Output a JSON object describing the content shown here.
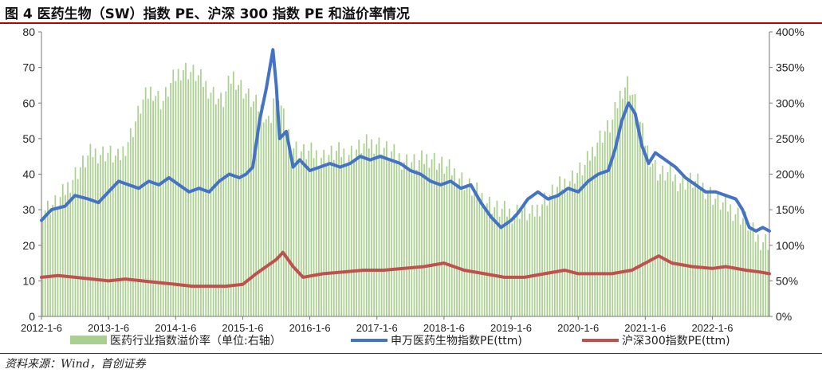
{
  "title": "图 4 医药生物（SW）指数 PE、沪深 300 指数 PE 和溢价率情况",
  "source": "资料来源：Wind，首创证券",
  "chart_data": {
    "type": "bar+line",
    "left_axis": {
      "min": 0,
      "max": 80,
      "ticks": [
        "0",
        "10",
        "20",
        "30",
        "40",
        "50",
        "60",
        "70",
        "80"
      ]
    },
    "right_axis": {
      "min": 0,
      "max": 400,
      "ticks": [
        "0%",
        "50%",
        "100%",
        "150%",
        "200%",
        "250%",
        "300%",
        "350%",
        "400%"
      ]
    },
    "x_ticks": [
      "2012-1-6",
      "2013-1-6",
      "2014-1-6",
      "2015-1-6",
      "2016-1-6",
      "2017-1-6",
      "2018-1-6",
      "2019-1-6",
      "2020-1-6",
      "2021-1-6",
      "2022-1-6"
    ],
    "x_range": [
      2012.0,
      2022.85
    ],
    "grid": false,
    "legend_position": "bottom",
    "colors": {
      "premium": "#a9d08e",
      "pharma": "#4472c4",
      "hs300": "#c0504d"
    },
    "series": [
      {
        "name": "医药行业指数溢价率（单位:右轴）",
        "axis": "right",
        "type": "bar",
        "x": [
          2012.0,
          2012.25,
          2012.5,
          2012.75,
          2013.0,
          2013.15,
          2013.35,
          2013.5,
          2013.65,
          2013.8,
          2013.95,
          2014.1,
          2014.3,
          2014.5,
          2014.7,
          2014.85,
          2015.0,
          2015.15,
          2015.3,
          2015.4,
          2015.5,
          2015.6,
          2015.75,
          2015.9,
          2016.0,
          2016.2,
          2016.4,
          2016.6,
          2016.8,
          2017.0,
          2017.2,
          2017.4,
          2017.6,
          2017.8,
          2018.0,
          2018.2,
          2018.4,
          2018.6,
          2018.8,
          2019.0,
          2019.15,
          2019.3,
          2019.5,
          2019.7,
          2019.9,
          2020.1,
          2020.3,
          2020.5,
          2020.65,
          2020.75,
          2020.85,
          2020.95,
          2021.05,
          2021.2,
          2021.35,
          2021.5,
          2021.7,
          2021.9,
          2022.1,
          2022.3,
          2022.5,
          2022.65,
          2022.85
        ],
        "y": [
          150,
          160,
          200,
          230,
          230,
          220,
          260,
          300,
          320,
          300,
          330,
          350,
          340,
          320,
          300,
          340,
          320,
          300,
          290,
          270,
          330,
          280,
          240,
          230,
          230,
          225,
          230,
          230,
          240,
          245,
          230,
          220,
          215,
          225,
          210,
          200,
          180,
          165,
          150,
          145,
          150,
          140,
          165,
          180,
          195,
          210,
          250,
          270,
          320,
          330,
          300,
          260,
          230,
          200,
          200,
          190,
          190,
          180,
          160,
          150,
          135,
          110,
          105
        ]
      },
      {
        "name": "申万医药生物指数PE(ttm)",
        "axis": "left",
        "type": "line",
        "x": [
          2012.0,
          2012.15,
          2012.35,
          2012.5,
          2012.7,
          2012.85,
          2013.0,
          2013.15,
          2013.3,
          2013.45,
          2013.6,
          2013.75,
          2013.9,
          2014.05,
          2014.2,
          2014.35,
          2014.5,
          2014.65,
          2014.8,
          2014.95,
          2015.05,
          2015.15,
          2015.25,
          2015.35,
          2015.45,
          2015.5,
          2015.55,
          2015.65,
          2015.75,
          2015.85,
          2016.0,
          2016.15,
          2016.3,
          2016.45,
          2016.6,
          2016.75,
          2016.9,
          2017.05,
          2017.2,
          2017.35,
          2017.5,
          2017.65,
          2017.8,
          2017.95,
          2018.1,
          2018.25,
          2018.4,
          2018.55,
          2018.7,
          2018.85,
          2019.0,
          2019.1,
          2019.25,
          2019.4,
          2019.55,
          2019.7,
          2019.85,
          2020.0,
          2020.15,
          2020.3,
          2020.45,
          2020.55,
          2020.65,
          2020.75,
          2020.85,
          2020.95,
          2021.05,
          2021.15,
          2021.3,
          2021.45,
          2021.6,
          2021.75,
          2021.9,
          2022.05,
          2022.2,
          2022.35,
          2022.45,
          2022.55,
          2022.65,
          2022.75,
          2022.85
        ],
        "y": [
          27,
          30,
          31,
          34,
          33,
          32,
          35,
          38,
          37,
          36,
          38,
          37,
          39,
          37,
          35,
          36,
          35,
          38,
          40,
          39,
          40,
          42,
          55,
          64,
          75,
          65,
          50,
          52,
          42,
          44,
          41,
          42,
          43,
          42,
          43,
          45,
          44,
          45,
          44,
          43,
          41,
          40,
          38,
          37,
          38,
          36,
          37,
          32,
          28,
          25,
          27,
          29,
          33,
          35,
          33,
          34,
          36,
          35,
          38,
          40,
          41,
          47,
          55,
          60,
          57,
          48,
          43,
          46,
          44,
          42,
          39,
          37,
          35,
          35,
          34,
          33,
          30,
          25,
          24,
          25,
          24
        ]
      },
      {
        "name": "沪深300指数PE(ttm)",
        "axis": "left",
        "type": "line",
        "x": [
          2012.0,
          2012.25,
          2012.5,
          2012.75,
          2013.0,
          2013.25,
          2013.5,
          2013.75,
          2014.0,
          2014.25,
          2014.5,
          2014.75,
          2015.0,
          2015.2,
          2015.35,
          2015.5,
          2015.6,
          2015.75,
          2015.9,
          2016.2,
          2016.5,
          2016.8,
          2017.1,
          2017.4,
          2017.7,
          2018.0,
          2018.3,
          2018.6,
          2018.9,
          2019.0,
          2019.2,
          2019.5,
          2019.8,
          2020.0,
          2020.2,
          2020.5,
          2020.8,
          2021.0,
          2021.1,
          2021.2,
          2021.4,
          2021.7,
          2022.0,
          2022.2,
          2022.5,
          2022.7,
          2022.85
        ],
        "y": [
          11,
          11.5,
          11,
          10.5,
          10,
          10.5,
          10,
          9.5,
          9,
          8.5,
          8.5,
          8.5,
          9,
          12,
          14,
          16,
          18,
          14,
          11,
          12,
          12.5,
          13,
          13,
          13.5,
          14,
          15,
          13,
          12,
          11,
          11,
          11,
          12,
          13,
          12,
          12,
          12,
          13,
          15,
          16,
          17,
          15,
          14,
          13.5,
          14,
          13,
          12.5,
          12
        ]
      }
    ]
  }
}
